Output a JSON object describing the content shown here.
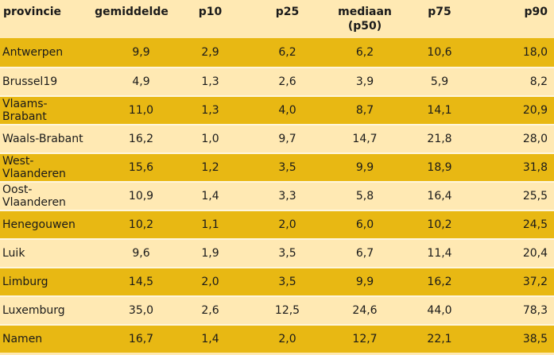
{
  "table": {
    "headers": [
      "provincie",
      "gemiddelde",
      "p10",
      "p25",
      "mediaan\n(p50)",
      "p75",
      "p90"
    ],
    "rows": [
      [
        "Antwerpen",
        "9,9",
        "2,9",
        "6,2",
        "6,2",
        "10,6",
        "18,0"
      ],
      [
        "Brussel19",
        "4,9",
        "1,3",
        "2,6",
        "3,9",
        "5,9",
        "8,2"
      ],
      [
        "Vlaams-Brabant",
        "11,0",
        "1,3",
        "4,0",
        "8,7",
        "14,1",
        "20,9"
      ],
      [
        "Waals-Brabant",
        "16,2",
        "1,0",
        "9,7",
        "14,7",
        "21,8",
        "28,0"
      ],
      [
        "West-Vlaanderen",
        "15,6",
        "1,2",
        "3,5",
        "9,9",
        "18,9",
        "31,8"
      ],
      [
        "Oost-Vlaanderen",
        "10,9",
        "1,4",
        "3,3",
        "5,8",
        "16,4",
        "25,5"
      ],
      [
        "Henegouwen",
        "10,2",
        "1,1",
        "2,0",
        "6,0",
        "10,2",
        "24,5"
      ],
      [
        "Luik",
        "9,6",
        "1,9",
        "3,5",
        "6,7",
        "11,4",
        "20,4"
      ],
      [
        "Limburg",
        "14,5",
        "2,0",
        "3,5",
        "9,9",
        "16,2",
        "37,2"
      ],
      [
        "Luxemburg",
        "35,0",
        "2,6",
        "12,5",
        "24,6",
        "44,0",
        "78,3"
      ],
      [
        "Namen",
        "16,7",
        "1,4",
        "2,0",
        "12,7",
        "22,1",
        "38,5"
      ]
    ]
  },
  "colors": {
    "band": "#e8b813",
    "light": "#ffe9b3"
  }
}
